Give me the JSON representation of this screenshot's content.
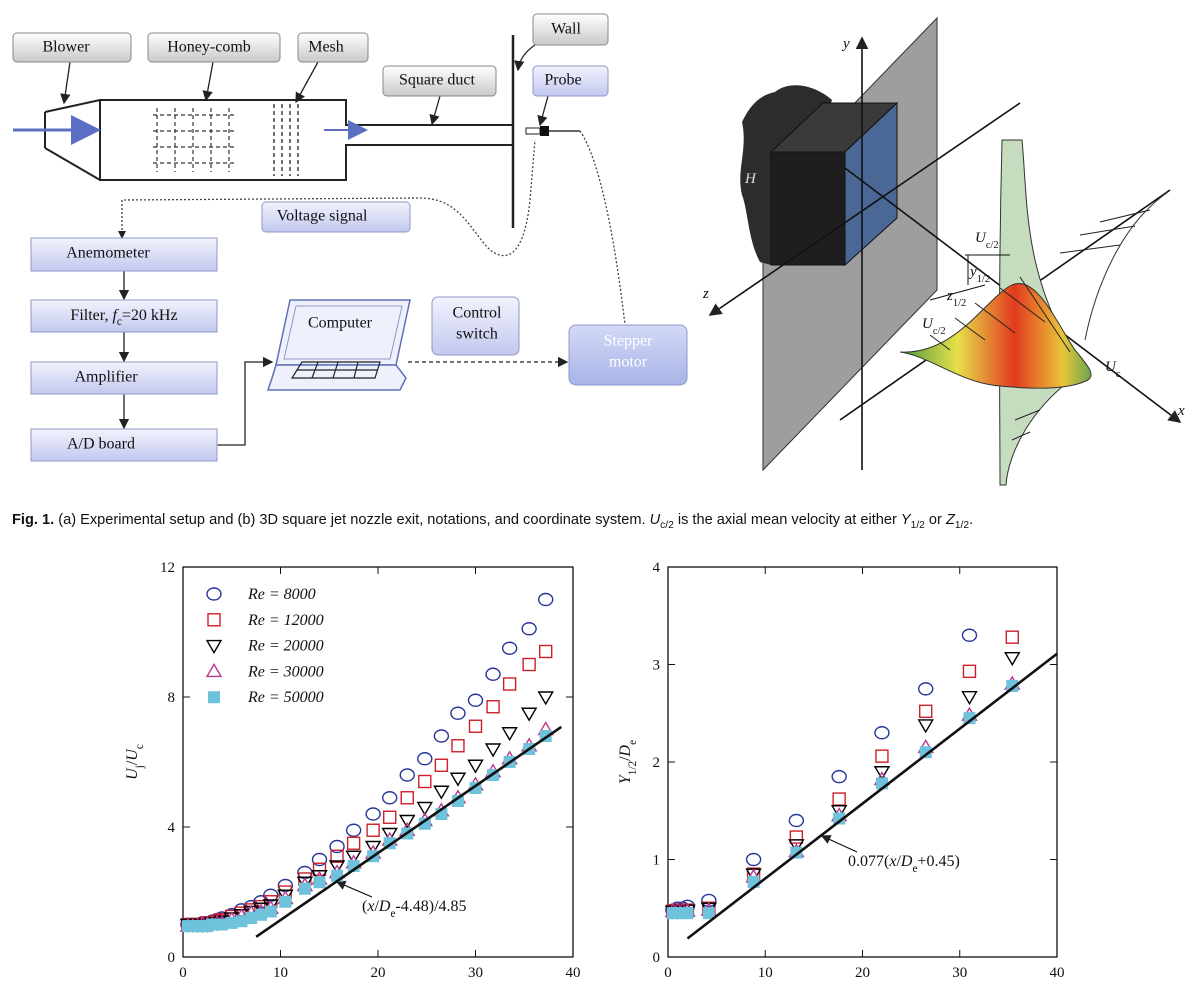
{
  "setup": {
    "blower": "Blower",
    "honeycomb": "Honey-comb",
    "mesh": "Mesh",
    "square_duct": "Square duct",
    "wall": "Wall",
    "probe": "Probe",
    "voltage_signal": "Voltage signal",
    "anemometer": "Anemometer",
    "filter": [
      {
        "t": "Filter, "
      },
      {
        "t": "f",
        "i": true
      },
      {
        "t": "c",
        "sub": true
      },
      {
        "t": "=20 kHz"
      }
    ],
    "amplifier": "Amplifier",
    "ad_board": "A/D board",
    "computer": "Computer",
    "control_switch": [
      "Control",
      "switch"
    ],
    "stepper_motor": [
      "Stepper",
      "motor"
    ]
  },
  "nozzle": {
    "y": "y",
    "h": "H",
    "z": "z",
    "x": "x",
    "uc2_top": [
      {
        "t": "U",
        "i": true
      },
      {
        "t": "c/2",
        "sub": true
      }
    ],
    "y12": [
      {
        "t": "y",
        "i": true
      },
      {
        "t": "1/2",
        "sub": true
      }
    ],
    "z12": [
      {
        "t": "z",
        "i": true
      },
      {
        "t": "1/2",
        "sub": true
      }
    ],
    "uc2_left": [
      {
        "t": "U",
        "i": true
      },
      {
        "t": "c/2",
        "sub": true
      }
    ],
    "uc": [
      {
        "t": "U",
        "i": true
      },
      {
        "t": "c",
        "sub": true
      }
    ]
  },
  "caption": {
    "label": "Fig. 1.",
    "parts": [
      {
        "t": "  (a) Experimental setup and (b) 3D square jet nozzle exit, notations, and coordinate system. "
      },
      {
        "t": "U",
        "i": true
      },
      {
        "t": "c/2",
        "sub": true
      },
      {
        "t": " is the axial mean velocity at either "
      },
      {
        "t": "Y",
        "i": true
      },
      {
        "t": "1/2",
        "sub": true
      },
      {
        "t": " or "
      },
      {
        "t": "Z",
        "i": true
      },
      {
        "t": "1/2",
        "sub": true
      },
      {
        "t": "."
      }
    ]
  },
  "chart_data": [
    {
      "type": "scatter",
      "ylabel": [
        {
          "t": "U",
          "i": true
        },
        {
          "t": "j",
          "sub": true
        },
        {
          "t": "/"
        },
        {
          "t": "U",
          "i": true
        },
        {
          "t": "c",
          "sub": true
        }
      ],
      "xlim": [
        0,
        40
      ],
      "xticks": [
        0,
        10,
        20,
        30,
        40
      ],
      "ylim": [
        0,
        12
      ],
      "yticks": [
        0,
        4,
        8,
        12
      ],
      "legend": "upper left",
      "x": [
        0.5,
        1,
        1.5,
        2,
        2.5,
        3,
        3.5,
        4,
        5,
        6,
        7,
        8,
        9,
        10.5,
        12.5,
        14,
        15.8,
        17.5,
        19.5,
        21.2,
        23,
        24.8,
        26.5,
        28.2,
        30,
        31.8,
        33.5,
        35.5,
        37.2
      ],
      "series": [
        {
          "name": "Re = 8000",
          "color": "#26349a",
          "marker": "circle",
          "filled": false,
          "values": [
            1.0,
            1.0,
            1.0,
            1.05,
            1.05,
            1.1,
            1.15,
            1.2,
            1.3,
            1.45,
            1.55,
            1.7,
            1.9,
            2.2,
            2.6,
            3.0,
            3.4,
            3.9,
            4.4,
            4.9,
            5.6,
            6.1,
            6.8,
            7.5,
            7.9,
            8.7,
            9.5,
            10.1,
            11.0
          ]
        },
        {
          "name": "Re = 12000",
          "color": "#cc1f2a",
          "marker": "square",
          "filled": false,
          "values": [
            1.0,
            1.0,
            1.0,
            1.0,
            1.05,
            1.05,
            1.1,
            1.15,
            1.25,
            1.35,
            1.45,
            1.55,
            1.7,
            2.0,
            2.4,
            2.7,
            3.1,
            3.5,
            3.9,
            4.3,
            4.9,
            5.4,
            5.9,
            6.5,
            7.1,
            7.7,
            8.4,
            9.0,
            9.4
          ]
        },
        {
          "name": "Re = 20000",
          "color": "#000000",
          "marker": "triangle-down",
          "filled": false,
          "values": [
            1.0,
            1.0,
            1.0,
            1.0,
            1.0,
            1.05,
            1.05,
            1.1,
            1.2,
            1.3,
            1.4,
            1.5,
            1.6,
            1.9,
            2.3,
            2.5,
            2.8,
            3.1,
            3.4,
            3.8,
            4.2,
            4.6,
            5.1,
            5.5,
            5.9,
            6.4,
            6.9,
            7.5,
            8.0
          ]
        },
        {
          "name": "Re = 30000",
          "color": "#b8398c",
          "marker": "triangle-up",
          "filled": false,
          "values": [
            0.95,
            0.95,
            0.95,
            1.0,
            1.0,
            1.0,
            1.05,
            1.05,
            1.15,
            1.25,
            1.35,
            1.4,
            1.5,
            1.8,
            2.2,
            2.4,
            2.6,
            2.9,
            3.2,
            3.6,
            3.9,
            4.2,
            4.5,
            4.9,
            5.3,
            5.7,
            6.1,
            6.5,
            7.0
          ]
        },
        {
          "name": "Re = 50000",
          "color": "#6ec2dc",
          "marker": "square",
          "filled": true,
          "values": [
            0.95,
            0.95,
            0.95,
            0.95,
            0.95,
            1.0,
            1.0,
            1.0,
            1.05,
            1.1,
            1.2,
            1.3,
            1.4,
            1.7,
            2.1,
            2.3,
            2.5,
            2.8,
            3.1,
            3.5,
            3.8,
            4.1,
            4.4,
            4.8,
            5.2,
            5.6,
            6.0,
            6.4,
            6.8
          ]
        }
      ],
      "fit": {
        "x": [
          7.5,
          38.8
        ],
        "y": [
          0.62,
          7.08
        ]
      },
      "annotation": [
        {
          "t": "("
        },
        {
          "t": "x",
          "i": true
        },
        {
          "t": "/"
        },
        {
          "t": "D",
          "i": true
        },
        {
          "t": "e",
          "sub": true
        },
        {
          "t": "-4.48)/4.85"
        }
      ]
    },
    {
      "type": "scatter",
      "ylabel": [
        {
          "t": "Y",
          "i": true
        },
        {
          "t": "1/2",
          "sub": true
        },
        {
          "t": "/"
        },
        {
          "t": "D",
          "i": true
        },
        {
          "t": "e",
          "sub": true
        }
      ],
      "xlim": [
        0,
        40
      ],
      "xticks": [
        0,
        10,
        20,
        30,
        40
      ],
      "ylim": [
        0,
        4
      ],
      "yticks": [
        0,
        1,
        2,
        3,
        4
      ],
      "x": [
        0.5,
        1,
        1.5,
        2,
        4.2,
        8.8,
        13.2,
        17.6,
        22,
        26.5,
        31,
        35.4
      ],
      "series": [
        {
          "color": "#26349a",
          "marker": "circle",
          "filled": false,
          "values": [
            0.48,
            0.5,
            0.5,
            0.52,
            0.58,
            1.0,
            1.4,
            1.85,
            2.3,
            2.75,
            3.3,
            null
          ]
        },
        {
          "color": "#cc1f2a",
          "marker": "square",
          "filled": false,
          "values": [
            0.47,
            0.48,
            0.48,
            0.48,
            0.5,
            0.85,
            1.23,
            1.62,
            2.06,
            2.52,
            2.93,
            3.28
          ]
        },
        {
          "color": "#000000",
          "marker": "triangle-down",
          "filled": false,
          "values": [
            0.47,
            0.47,
            0.48,
            0.48,
            0.5,
            0.85,
            1.15,
            1.5,
            1.9,
            2.38,
            2.67,
            3.07
          ]
        },
        {
          "color": "#b8398c",
          "marker": "triangle-up",
          "filled": false,
          "values": [
            0.47,
            0.48,
            0.48,
            0.47,
            0.48,
            0.82,
            1.08,
            1.45,
            1.82,
            2.15,
            2.48,
            2.8
          ]
        },
        {
          "color": "#6ec2dc",
          "marker": "square",
          "filled": true,
          "values": [
            0.45,
            0.45,
            0.45,
            0.45,
            0.45,
            0.77,
            1.07,
            1.42,
            1.78,
            2.1,
            2.45,
            2.78
          ]
        }
      ],
      "fit": {
        "x": [
          2,
          40
        ],
        "y": [
          0.19,
          3.11
        ]
      },
      "annotation": [
        {
          "t": "0.077("
        },
        {
          "t": "x",
          "i": true
        },
        {
          "t": "/"
        },
        {
          "t": "D",
          "i": true
        },
        {
          "t": "e",
          "sub": true
        },
        {
          "t": "+0.45)"
        }
      ]
    }
  ]
}
